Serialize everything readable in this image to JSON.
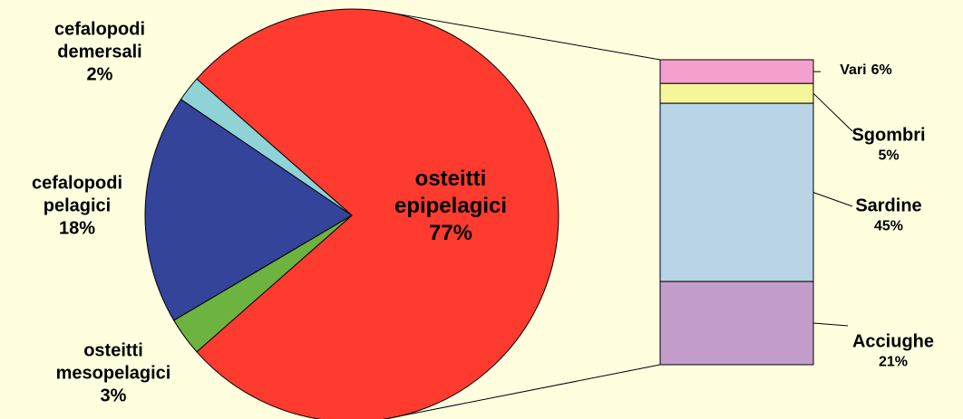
{
  "chart_data": {
    "type": "pie",
    "categories": [
      "osteitti epipelagici",
      "cefalopodi demersali",
      "cefalopodi pelagici",
      "osteitti mesopelagici"
    ],
    "values": [
      77,
      2,
      18,
      3
    ],
    "value_labels": [
      "77%",
      "2%",
      "18%",
      "3%"
    ],
    "colors": [
      "#ff3b2f",
      "#8fd3d6",
      "#33449a",
      "#6db33f"
    ],
    "bar_of_pie": {
      "categories": [
        "Vari",
        "Sgombri",
        "Sardine",
        "Acciughe"
      ],
      "values": [
        6,
        5,
        45,
        21
      ],
      "value_labels": [
        "6%",
        "5%",
        "45%",
        "21%"
      ],
      "colors": [
        "#f4a0cc",
        "#f5f59a",
        "#b8d4e6",
        "#c39ecb"
      ]
    }
  }
}
